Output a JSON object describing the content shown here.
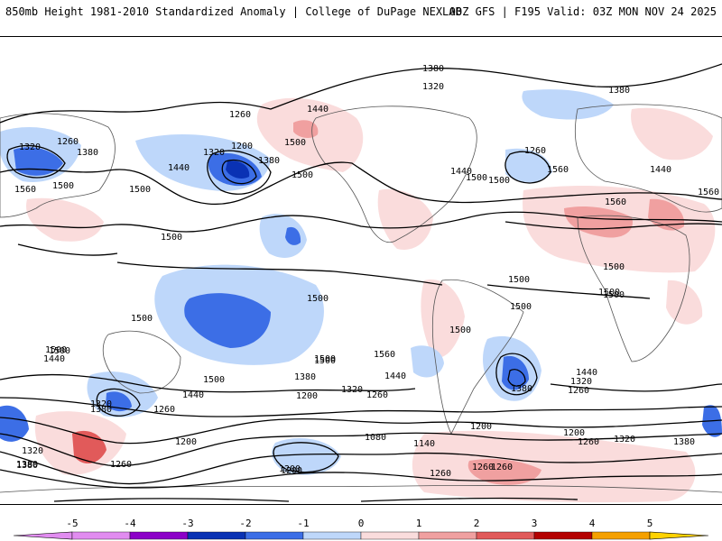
{
  "header": {
    "left": "850mb Height 1981-2010 Standardized Anomaly | College of DuPage NEXLAB",
    "right": "00Z GFS | F195 Valid: 03Z MON NOV 24 2025"
  },
  "colors": {
    "neg5": "#e18cf0",
    "neg4": "#8c00c8",
    "neg3": "#0a32b4",
    "neg2": "#3c6ee6",
    "neg1": "#bed7fa",
    "pos1": "#fadcdc",
    "pos2": "#f0a0a0",
    "pos3": "#e15a5a",
    "pos4": "#b40000",
    "pos5": "#f5a000",
    "pos6": "#ffd200",
    "land": "#555555",
    "contour": "#000000"
  },
  "colorbar": {
    "ticks": [
      "-5",
      "-4",
      "-3",
      "-2",
      "-1",
      "0",
      "1",
      "2",
      "3",
      "4",
      "5"
    ]
  },
  "contour_labels": {
    "l1": "1380",
    "l2": "1320",
    "l3": "1380",
    "l4": "1260",
    "l5": "1440",
    "l6": "1260",
    "l7": "1200",
    "l8": "1320",
    "l9": "1380",
    "l10": "1440",
    "l11": "1500",
    "l12": "1500",
    "l13": "1440",
    "l14": "1380",
    "l15": "1260",
    "l16": "1320",
    "l17": "1560",
    "l18": "1500",
    "l19": "1440",
    "l20": "1560",
    "l21": "1560",
    "l22": "1560",
    "l23": "1500",
    "l24": "1500",
    "l25": "1500",
    "l26": "1500",
    "l27": "1500",
    "l28": "1500",
    "l29": "1500",
    "l30": "1500",
    "l31": "1500",
    "l32": "1500",
    "l33": "1500",
    "l34": "1560",
    "l35": "1380",
    "l36": "1440",
    "l37": "1320",
    "l38": "1260",
    "l39": "1200",
    "l40": "1140",
    "l41": "1080",
    "l42": "1260",
    "l43": "1200",
    "l44": "1200",
    "l45": "1320",
    "l46": "1260",
    "l47": "1380",
    "l48": "1440",
    "l49": "1440",
    "l50": "1320",
    "l51": "1260",
    "l52": "1200",
    "l53": "1260",
    "l54": "1320",
    "l55": "1380",
    "l56": "1200",
    "l57": "1260",
    "l58": "1260",
    "l59": "1260",
    "l60": "1380",
    "l61": "1200",
    "l62": "1320",
    "l63": "1380",
    "l64": "1380",
    "l65": "1500",
    "l66": "1500",
    "l67": "1440",
    "l68": "1500",
    "l69": "1500",
    "l70": "1500",
    "l71": "1500"
  }
}
